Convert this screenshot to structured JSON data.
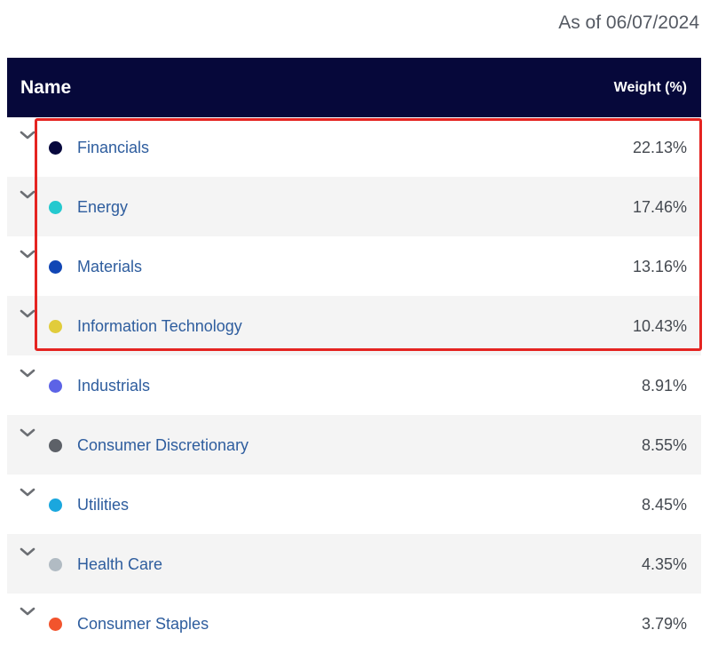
{
  "as_of": "As of 06/07/2024",
  "header": {
    "name": "Name",
    "weight": "Weight (%)"
  },
  "rows": [
    {
      "label": "Financials",
      "weight": "22.13%",
      "color": "#07083d"
    },
    {
      "label": "Energy",
      "weight": "17.46%",
      "color": "#24c9cf"
    },
    {
      "label": "Materials",
      "weight": "13.16%",
      "color": "#1146b5"
    },
    {
      "label": "Information Technology",
      "weight": "10.43%",
      "color": "#e1cc3b"
    },
    {
      "label": "Industrials",
      "weight": "8.91%",
      "color": "#5c63e6"
    },
    {
      "label": "Consumer Discretionary",
      "weight": "8.55%",
      "color": "#5d6168"
    },
    {
      "label": "Utilities",
      "weight": "8.45%",
      "color": "#1aa7de"
    },
    {
      "label": "Health Care",
      "weight": "4.35%",
      "color": "#b1bbc3"
    },
    {
      "label": "Consumer Staples",
      "weight": "3.79%",
      "color": "#f2542d"
    }
  ],
  "colors": {
    "header_bg": "#06083a",
    "highlight": "#e52421",
    "link": "#2e5d9e"
  },
  "icons": {
    "expand": "chevron-down-icon"
  }
}
